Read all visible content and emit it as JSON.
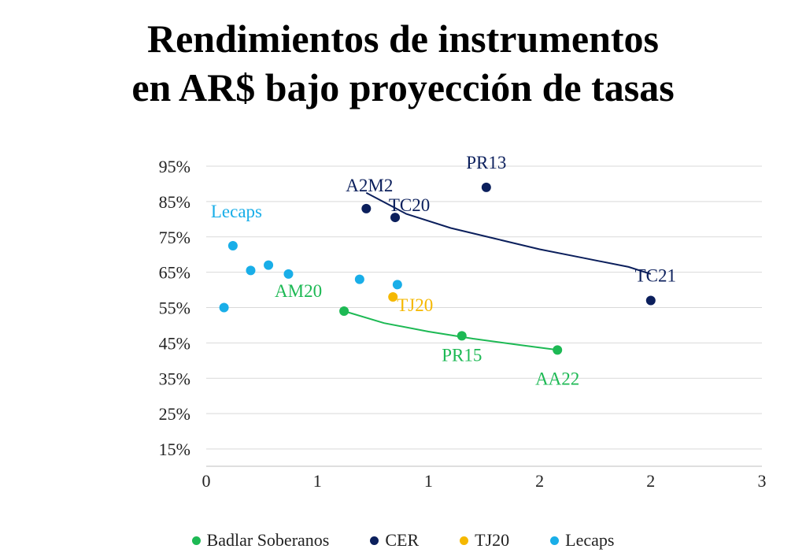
{
  "chart_data": {
    "type": "scatter",
    "title_lines": [
      "Rendimientos de instrumentos",
      "en AR$ bajo proyección de tasas"
    ],
    "xlabel": "",
    "ylabel": "",
    "xlim": [
      0,
      2.5
    ],
    "ylim": [
      0.15,
      0.95
    ],
    "x_ticks": [
      0,
      0.5,
      1,
      1.5,
      2,
      2.5
    ],
    "x_tick_labels": [
      "0",
      "1",
      "1",
      "2",
      "2",
      "3"
    ],
    "y_ticks": [
      0.15,
      0.25,
      0.35,
      0.45,
      0.55,
      0.65,
      0.75,
      0.85,
      0.95
    ],
    "y_tick_labels": [
      "15%",
      "25%",
      "35%",
      "45%",
      "55%",
      "65%",
      "75%",
      "85%",
      "95%"
    ],
    "grid": true,
    "legend_position": "bottom",
    "series": [
      {
        "name": "Badlar Soberanos",
        "color": "#1db954",
        "points": [
          {
            "x": 0.62,
            "y": 0.54,
            "label": "AM20"
          },
          {
            "x": 1.15,
            "y": 0.47,
            "label": "PR15"
          },
          {
            "x": 1.58,
            "y": 0.43,
            "label": "AA22"
          }
        ],
        "trend": [
          [
            0.62,
            0.54
          ],
          [
            0.8,
            0.506
          ],
          [
            1.0,
            0.482
          ],
          [
            1.2,
            0.462
          ],
          [
            1.4,
            0.445
          ],
          [
            1.58,
            0.43
          ]
        ]
      },
      {
        "name": "CER",
        "color": "#0b1f5c",
        "points": [
          {
            "x": 0.72,
            "y": 0.83,
            "label": "A2M2"
          },
          {
            "x": 0.85,
            "y": 0.805,
            "label": "TC20"
          },
          {
            "x": 1.26,
            "y": 0.89,
            "label": "PR13"
          },
          {
            "x": 2.0,
            "y": 0.57,
            "label": "TC21"
          }
        ],
        "trend": [
          [
            0.72,
            0.875
          ],
          [
            0.9,
            0.815
          ],
          [
            1.1,
            0.775
          ],
          [
            1.3,
            0.745
          ],
          [
            1.5,
            0.715
          ],
          [
            1.7,
            0.69
          ],
          [
            1.9,
            0.665
          ],
          [
            2.0,
            0.645
          ]
        ]
      },
      {
        "name": "TJ20",
        "color": "#f5b800",
        "points": [
          {
            "x": 0.84,
            "y": 0.58,
            "label": "TJ20"
          }
        ]
      },
      {
        "name": "Lecaps",
        "color": "#19aee8",
        "group_label": "Lecaps",
        "points": [
          {
            "x": 0.08,
            "y": 0.55
          },
          {
            "x": 0.12,
            "y": 0.725
          },
          {
            "x": 0.2,
            "y": 0.655
          },
          {
            "x": 0.28,
            "y": 0.67
          },
          {
            "x": 0.37,
            "y": 0.645
          },
          {
            "x": 0.69,
            "y": 0.63
          },
          {
            "x": 0.86,
            "y": 0.615
          }
        ]
      }
    ]
  }
}
